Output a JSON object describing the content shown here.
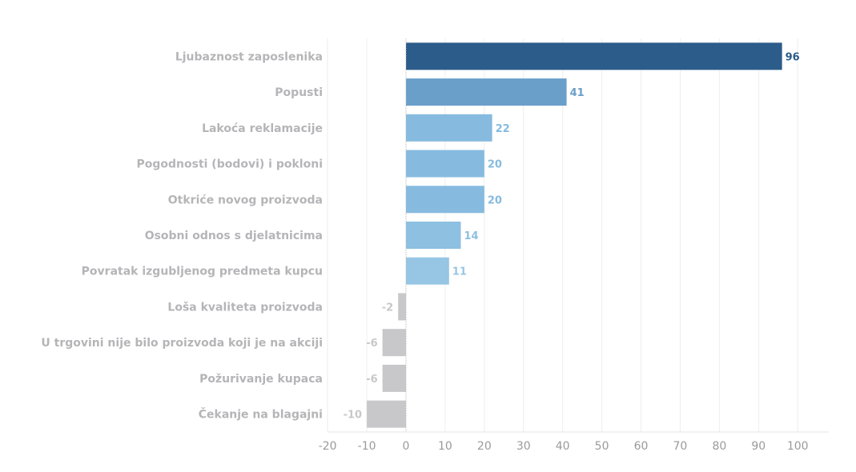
{
  "chart_data": {
    "type": "bar",
    "orientation": "horizontal",
    "title": "",
    "xlabel": "",
    "ylabel": "",
    "xlim": [
      -20,
      107
    ],
    "grid": true,
    "categories": [
      "Ljubaznost zaposlenika",
      "Popusti",
      "Lakoća reklamacije",
      "Pogodnosti (bodovi) i pokloni",
      "Otkriće novog proizvoda",
      "Osobni odnos s djelatnicima",
      "Povratak izgubljenog predmeta kupcu",
      "Loša kvaliteta proizvoda",
      "U trgovini nije bilo proizvoda koji je na akciji",
      "Požurivanje kupaca",
      "Čekanje na blagajni"
    ],
    "values": [
      96,
      41,
      22,
      20,
      20,
      14,
      11,
      -2,
      -6,
      -6,
      -10
    ],
    "value_labels": [
      "96",
      "41",
      "22",
      "20",
      "20",
      "14",
      "11",
      "-2",
      "-6",
      "-6",
      "-10"
    ],
    "bar_colors": [
      "#2c5c8a",
      "#6a9fca",
      "#86bbdf",
      "#86bbdf",
      "#86bbdf",
      "#8dc0e1",
      "#97c6e4",
      "#c8c8ca",
      "#c8c8ca",
      "#c8c8ca",
      "#c8c8ca"
    ],
    "label_colors": [
      "#2c5c8a",
      "#6a9fca",
      "#86bbdf",
      "#86bbdf",
      "#86bbdf",
      "#8dc0e1",
      "#97c6e4",
      "#c8c8ca",
      "#c8c8ca",
      "#c8c8ca",
      "#c8c8ca"
    ],
    "x_ticks": [
      -20,
      -10,
      0,
      10,
      20,
      30,
      40,
      50,
      60,
      70,
      80,
      90,
      100
    ],
    "x_tick_labels": [
      "-20",
      "-10",
      "0",
      "10",
      "20",
      "30",
      "40",
      "50",
      "60",
      "70",
      "80",
      "90",
      "100"
    ],
    "legend": "none"
  }
}
